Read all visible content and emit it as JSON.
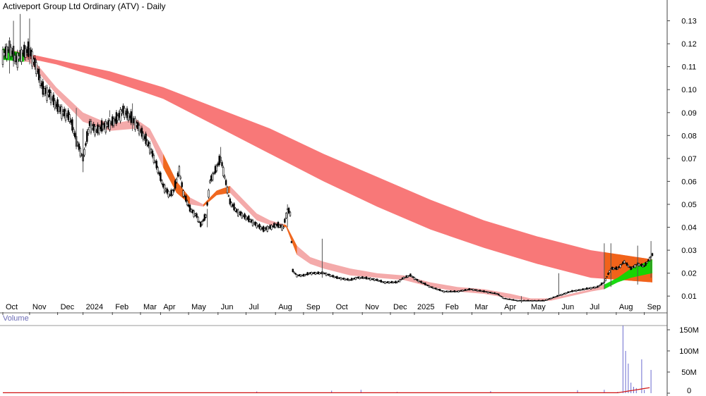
{
  "chart_data": {
    "type": "candlestick",
    "title": "Activeport Group Ltd Ordinary (ATV) - Daily",
    "price_axis": {
      "ylim": [
        0.003,
        0.136
      ],
      "ticks": [
        "0.13",
        "0.12",
        "0.11",
        "0.10",
        "0.09",
        "0.08",
        "0.07",
        "0.06",
        "0.05",
        "0.04",
        "0.03",
        "0.02",
        "0.01"
      ]
    },
    "volume_axis": {
      "label": "Volume",
      "ylim": [
        0,
        160
      ],
      "ticks": [
        "150M",
        "100M",
        "50M",
        "0"
      ]
    },
    "x_labels": [
      "Oct",
      "Nov",
      "Dec",
      "2024",
      "Feb",
      "Mar",
      "Apr",
      "May",
      "Jun",
      "Jul",
      "Aug",
      "Sep",
      "Oct",
      "Nov",
      "Dec",
      "2025",
      "Feb",
      "Mar",
      "Apr",
      "May",
      "Jun",
      "Jul",
      "Aug",
      "Sep"
    ],
    "x_label_index": [
      0,
      20,
      41,
      60,
      82,
      103,
      118,
      139,
      161,
      182,
      204,
      225,
      247,
      269,
      290,
      308,
      329,
      351,
      373,
      393,
      416,
      437,
      459,
      480
    ],
    "price_path": [
      [
        0,
        0.115
      ],
      [
        5,
        0.118
      ],
      [
        10,
        0.113
      ],
      [
        15,
        0.116
      ],
      [
        20,
        0.117
      ],
      [
        25,
        0.11
      ],
      [
        30,
        0.1
      ],
      [
        35,
        0.098
      ],
      [
        40,
        0.093
      ],
      [
        45,
        0.09
      ],
      [
        50,
        0.088
      ],
      [
        55,
        0.078
      ],
      [
        60,
        0.07
      ],
      [
        65,
        0.085
      ],
      [
        70,
        0.082
      ],
      [
        75,
        0.084
      ],
      [
        80,
        0.085
      ],
      [
        85,
        0.087
      ],
      [
        90,
        0.091
      ],
      [
        95,
        0.088
      ],
      [
        100,
        0.085
      ],
      [
        105,
        0.08
      ],
      [
        110,
        0.075
      ],
      [
        115,
        0.067
      ],
      [
        120,
        0.058
      ],
      [
        125,
        0.054
      ],
      [
        128,
        0.056
      ],
      [
        132,
        0.065
      ],
      [
        135,
        0.055
      ],
      [
        140,
        0.048
      ],
      [
        145,
        0.045
      ],
      [
        148,
        0.041
      ],
      [
        152,
        0.045
      ],
      [
        155,
        0.06
      ],
      [
        160,
        0.066
      ],
      [
        163,
        0.07
      ],
      [
        166,
        0.062
      ],
      [
        170,
        0.051
      ],
      [
        175,
        0.047
      ],
      [
        180,
        0.045
      ],
      [
        185,
        0.043
      ],
      [
        190,
        0.041
      ],
      [
        195,
        0.039
      ],
      [
        200,
        0.04
      ],
      [
        205,
        0.041
      ],
      [
        210,
        0.04
      ],
      [
        213,
        0.048
      ],
      [
        215,
        0.046
      ],
      [
        217,
        0.021
      ],
      [
        220,
        0.019
      ],
      [
        225,
        0.019
      ],
      [
        230,
        0.02
      ],
      [
        240,
        0.02
      ],
      [
        250,
        0.018
      ],
      [
        260,
        0.017
      ],
      [
        265,
        0.018
      ],
      [
        270,
        0.018
      ],
      [
        280,
        0.017
      ],
      [
        285,
        0.016
      ],
      [
        295,
        0.016
      ],
      [
        300,
        0.018
      ],
      [
        305,
        0.019
      ],
      [
        310,
        0.017
      ],
      [
        320,
        0.014
      ],
      [
        330,
        0.012
      ],
      [
        340,
        0.012
      ],
      [
        350,
        0.013
      ],
      [
        360,
        0.012
      ],
      [
        370,
        0.011
      ],
      [
        375,
        0.009
      ],
      [
        385,
        0.008
      ],
      [
        395,
        0.008
      ],
      [
        405,
        0.008
      ],
      [
        415,
        0.01
      ],
      [
        420,
        0.011
      ],
      [
        425,
        0.012
      ],
      [
        435,
        0.013
      ],
      [
        445,
        0.014
      ],
      [
        450,
        0.016
      ],
      [
        455,
        0.022
      ],
      [
        460,
        0.022
      ],
      [
        465,
        0.025
      ],
      [
        470,
        0.022
      ],
      [
        475,
        0.024
      ],
      [
        480,
        0.023
      ],
      [
        486,
        0.028
      ]
    ],
    "spikes": [
      [
        5,
        0.107,
        0.122
      ],
      [
        8,
        0.11,
        0.13
      ],
      [
        13,
        0.112,
        0.133
      ],
      [
        20,
        0.111,
        0.131
      ],
      [
        55,
        0.074,
        0.092
      ],
      [
        60,
        0.064,
        0.083
      ],
      [
        80,
        0.088,
        0.091
      ],
      [
        97,
        0.082,
        0.094
      ],
      [
        153,
        0.04,
        0.048
      ],
      [
        163,
        0.068,
        0.075
      ],
      [
        213,
        0.04,
        0.05
      ],
      [
        239,
        0.018,
        0.035
      ],
      [
        388,
        0.007,
        0.01
      ],
      [
        416,
        0.01,
        0.02
      ],
      [
        450,
        0.013,
        0.033
      ],
      [
        455,
        0.014,
        0.033
      ],
      [
        475,
        0.015,
        0.032
      ],
      [
        485,
        0.018,
        0.034
      ]
    ],
    "series": [
      {
        "name": "",
        "kind": "short-term ribbon",
        "color": "#f4aaaa",
        "upper": [
          [
            0,
            0.118
          ],
          [
            20,
            0.115
          ],
          [
            40,
            0.101
          ],
          [
            60,
            0.09
          ],
          [
            80,
            0.085
          ],
          [
            100,
            0.087
          ],
          [
            110,
            0.083
          ],
          [
            120,
            0.072
          ],
          [
            130,
            0.06
          ],
          [
            140,
            0.053
          ],
          [
            150,
            0.05
          ],
          [
            160,
            0.056
          ],
          [
            170,
            0.058
          ],
          [
            180,
            0.052
          ],
          [
            190,
            0.046
          ],
          [
            200,
            0.043
          ],
          [
            212,
            0.041
          ],
          [
            220,
            0.032
          ],
          [
            230,
            0.027
          ],
          [
            240,
            0.025
          ],
          [
            260,
            0.022
          ],
          [
            280,
            0.02
          ],
          [
            300,
            0.019
          ],
          [
            320,
            0.016
          ],
          [
            340,
            0.014
          ],
          [
            360,
            0.013
          ],
          [
            380,
            0.011
          ],
          [
            395,
            0.009
          ],
          [
            410,
            0.009
          ],
          [
            425,
            0.011
          ],
          [
            440,
            0.013
          ],
          [
            450,
            0.015
          ],
          [
            460,
            0.018
          ],
          [
            470,
            0.022
          ],
          [
            486,
            0.026
          ]
        ],
        "lower": [
          [
            0,
            0.113
          ],
          [
            20,
            0.112
          ],
          [
            40,
            0.098
          ],
          [
            60,
            0.086
          ],
          [
            80,
            0.082
          ],
          [
            100,
            0.083
          ],
          [
            110,
            0.079
          ],
          [
            120,
            0.066
          ],
          [
            130,
            0.055
          ],
          [
            140,
            0.05
          ],
          [
            150,
            0.049
          ],
          [
            160,
            0.054
          ],
          [
            170,
            0.055
          ],
          [
            180,
            0.049
          ],
          [
            190,
            0.043
          ],
          [
            200,
            0.041
          ],
          [
            212,
            0.04
          ],
          [
            220,
            0.028
          ],
          [
            230,
            0.024
          ],
          [
            240,
            0.022
          ],
          [
            260,
            0.019
          ],
          [
            280,
            0.018
          ],
          [
            300,
            0.017
          ],
          [
            320,
            0.014
          ],
          [
            340,
            0.012
          ],
          [
            360,
            0.011
          ],
          [
            380,
            0.009
          ],
          [
            395,
            0.008
          ],
          [
            410,
            0.008
          ],
          [
            425,
            0.01
          ],
          [
            440,
            0.012
          ],
          [
            450,
            0.013
          ],
          [
            460,
            0.016
          ],
          [
            470,
            0.018
          ],
          [
            486,
            0.02
          ]
        ]
      },
      {
        "name": "",
        "kind": "long-term ribbon",
        "color": "#f87878",
        "upper": [
          [
            0,
            0.118
          ],
          [
            40,
            0.113
          ],
          [
            80,
            0.108
          ],
          [
            120,
            0.101
          ],
          [
            160,
            0.092
          ],
          [
            200,
            0.083
          ],
          [
            240,
            0.072
          ],
          [
            280,
            0.062
          ],
          [
            320,
            0.052
          ],
          [
            360,
            0.043
          ],
          [
            400,
            0.036
          ],
          [
            440,
            0.03
          ],
          [
            486,
            0.026
          ]
        ],
        "lower": [
          [
            0,
            0.116
          ],
          [
            40,
            0.111
          ],
          [
            80,
            0.104
          ],
          [
            120,
            0.096
          ],
          [
            160,
            0.084
          ],
          [
            200,
            0.072
          ],
          [
            240,
            0.06
          ],
          [
            280,
            0.049
          ],
          [
            320,
            0.039
          ],
          [
            360,
            0.031
          ],
          [
            400,
            0.024
          ],
          [
            440,
            0.018
          ],
          [
            486,
            0.016
          ]
        ]
      }
    ],
    "volume": [
      [
        90,
        2
      ],
      [
        190,
        4
      ],
      [
        246,
        6
      ],
      [
        268,
        8
      ],
      [
        295,
        3
      ],
      [
        365,
        5
      ],
      [
        430,
        7
      ],
      [
        450,
        8
      ],
      [
        460,
        3
      ],
      [
        464,
        160
      ],
      [
        466,
        100
      ],
      [
        468,
        70
      ],
      [
        470,
        25
      ],
      [
        472,
        15
      ],
      [
        474,
        12
      ],
      [
        478,
        80
      ],
      [
        480,
        8
      ],
      [
        485,
        55
      ]
    ],
    "volume_line_color": "#d01010",
    "colors": {
      "candle": "#000000",
      "ribbon_up": "#00e000",
      "ribbon_down": "#f06010"
    }
  }
}
